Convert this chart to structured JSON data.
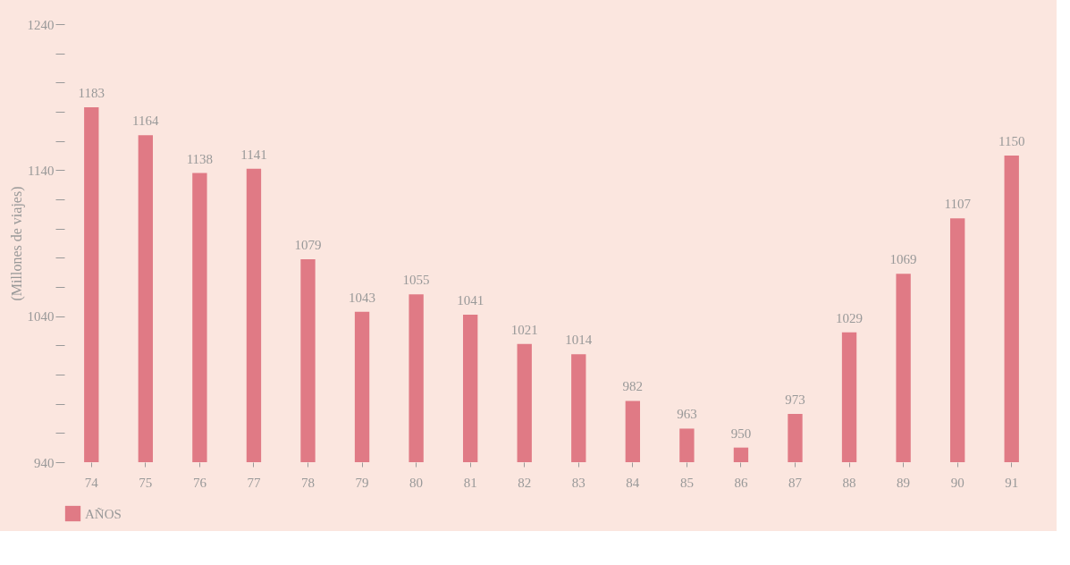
{
  "chart_data": {
    "type": "bar",
    "ylabel": "(Millones de viajes)",
    "categories": [
      "74",
      "75",
      "76",
      "77",
      "78",
      "79",
      "80",
      "81",
      "82",
      "83",
      "84",
      "85",
      "86",
      "87",
      "88",
      "89",
      "90",
      "91"
    ],
    "series": [
      {
        "name": "AÑOS",
        "color": "#e07a85",
        "values": [
          1183,
          1164,
          1138,
          1141,
          1079,
          1043,
          1055,
          1041,
          1021,
          1014,
          982,
          963,
          950,
          973,
          1029,
          1069,
          1107,
          1150
        ]
      }
    ],
    "ylim": [
      940,
      1240
    ],
    "yticks": [
      940,
      {
        "value": 960,
        "label": null
      },
      {
        "value": 980,
        "label": null
      },
      {
        "value": 1000,
        "label": null
      },
      {
        "value": 1020,
        "label": null
      },
      1040,
      {
        "value": 1060,
        "label": null
      },
      {
        "value": 1080,
        "label": null
      },
      {
        "value": 1100,
        "label": null
      },
      {
        "value": 1120,
        "label": null
      },
      1140,
      {
        "value": 1160,
        "label": null
      },
      {
        "value": 1180,
        "label": null
      },
      {
        "value": 1200,
        "label": null
      },
      {
        "value": 1220,
        "label": null
      },
      1240
    ],
    "data_labels": true,
    "legend": "bottom"
  }
}
